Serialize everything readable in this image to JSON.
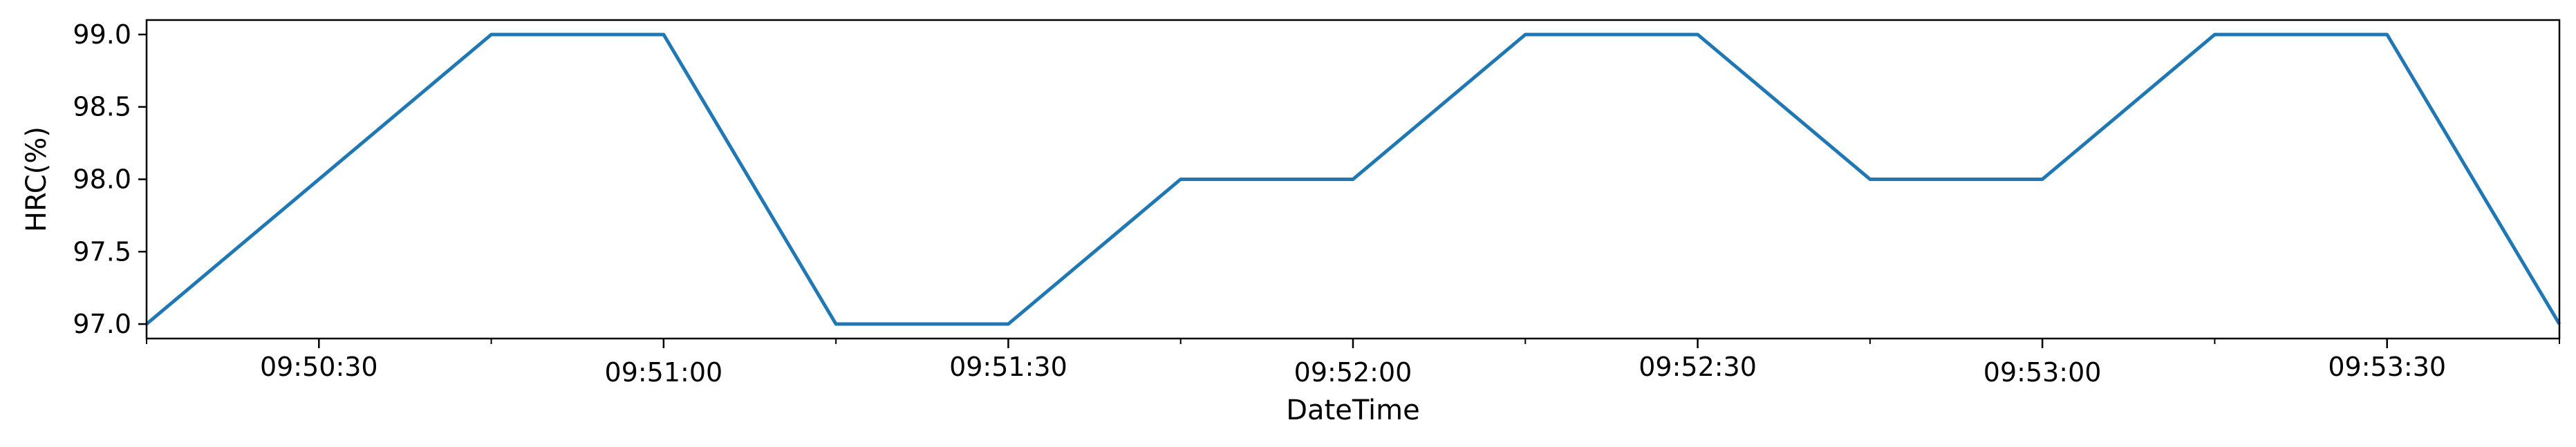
{
  "chart_data": {
    "type": "line",
    "title": "",
    "xlabel": "DateTime",
    "ylabel": "HRC(%)",
    "x_type": "time",
    "xlim": [
      "09:50:15",
      "09:53:45"
    ],
    "ylim": [
      96.9,
      99.1
    ],
    "grid": false,
    "legend": "none",
    "x_ticks": [
      "09:50:30",
      "09:51:00",
      "09:51:30",
      "09:52:00",
      "09:52:30",
      "09:53:00",
      "09:53:30"
    ],
    "y_ticks": [
      "97.0",
      "97.5",
      "98.0",
      "98.5",
      "99.0"
    ],
    "series": [
      {
        "color": "#1f77b4",
        "x": [
          "09:50:15",
          "09:50:45",
          "09:51:00",
          "09:51:15",
          "09:51:30",
          "09:51:45",
          "09:52:00",
          "09:52:15",
          "09:52:30",
          "09:52:45",
          "09:53:00",
          "09:53:15",
          "09:53:30",
          "09:53:45"
        ],
        "y": [
          97,
          99,
          99,
          97,
          97,
          98,
          98,
          99,
          99,
          98,
          98,
          99,
          99,
          97
        ]
      }
    ]
  }
}
